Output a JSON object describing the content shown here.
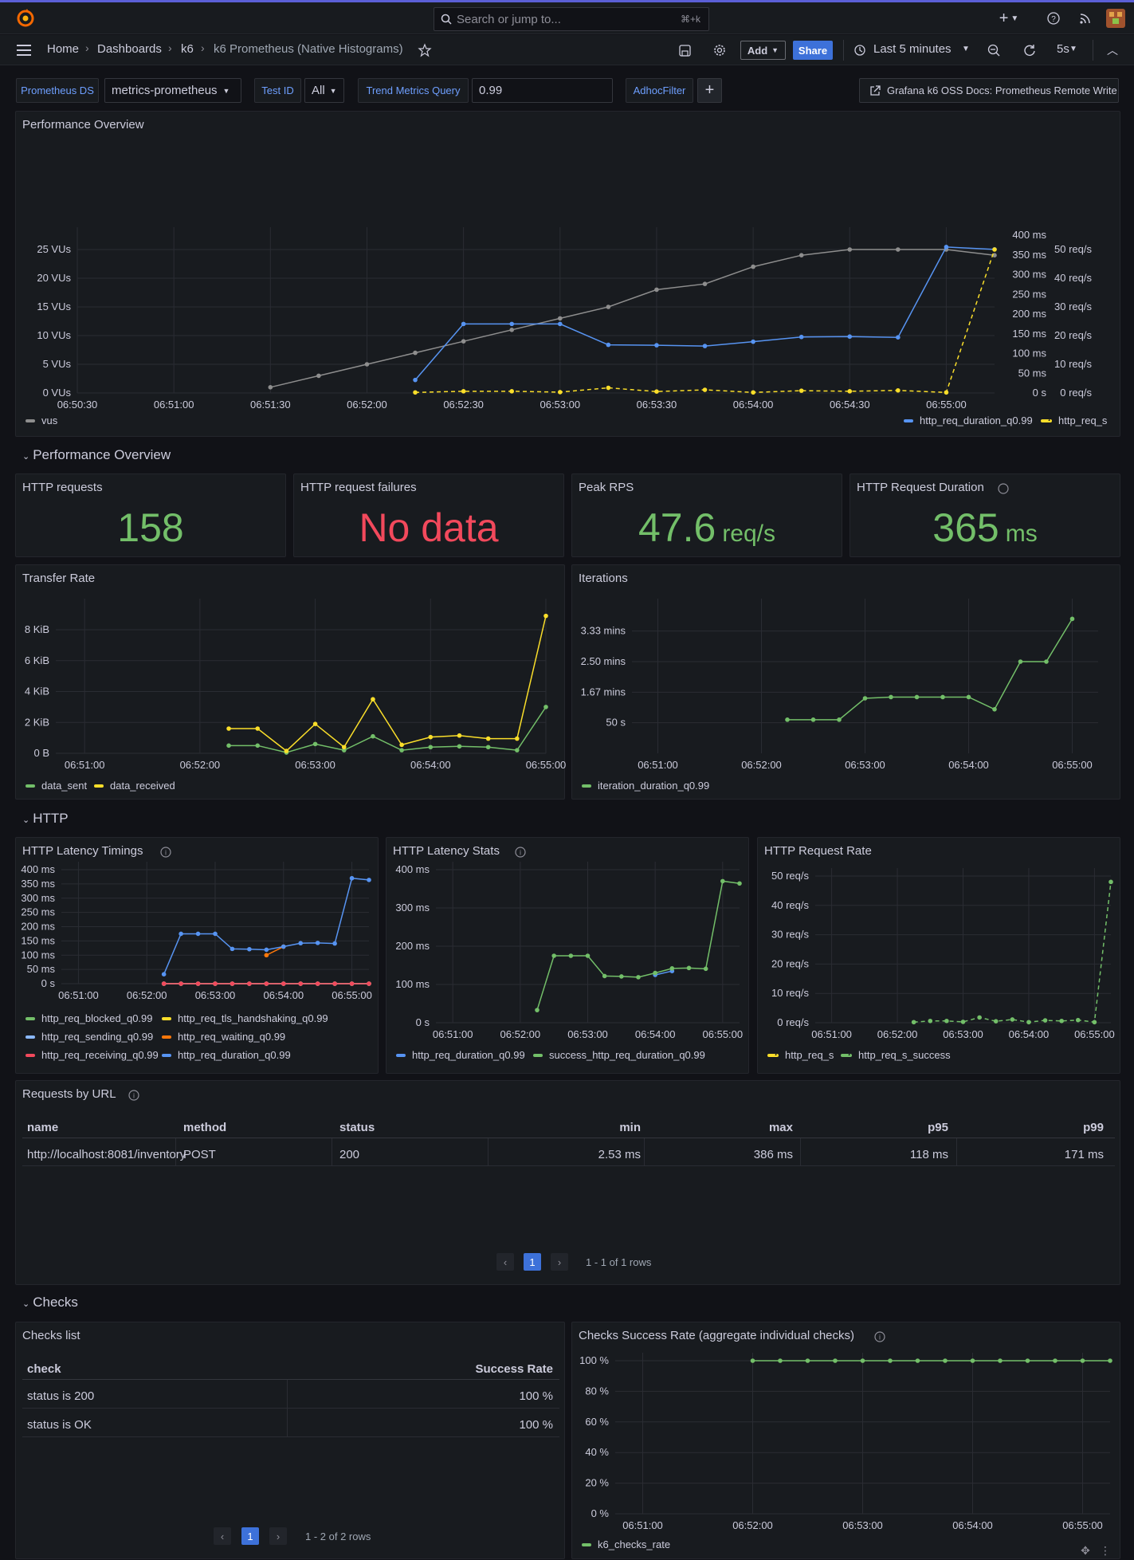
{
  "topbar": {
    "search_placeholder": "Search or jump to...",
    "search_shortcut": "⌘+k",
    "add": "+"
  },
  "nav": {
    "home": "Home",
    "dashboards": "Dashboards",
    "folder": "k6",
    "current": "k6 Prometheus (Native Histograms)",
    "add_label": "Add",
    "share_label": "Share",
    "time_range": "Last 5 minutes",
    "refresh": "5s"
  },
  "vars": {
    "ds_label": "Prometheus DS",
    "ds_value": "metrics-prometheus",
    "testid_label": "Test ID",
    "testid_value": "All",
    "trend_label": "Trend Metrics Query",
    "trend_value": "0.99",
    "adhoc_label": "AdhocFilter",
    "docs_link": "Grafana k6 OSS Docs: Prometheus Remote Write"
  },
  "colors": {
    "green": "#73bf69",
    "blue": "#5794f2",
    "yellow": "#fade2a",
    "red": "#f2495c",
    "orange": "#ff780a",
    "gray": "#8e8e8e"
  },
  "panels": {
    "perf": {
      "title": "Performance Overview"
    },
    "row_perf": "Performance Overview",
    "stats": [
      {
        "title": "HTTP requests",
        "value": "158",
        "unit": "",
        "color": "#73bf69"
      },
      {
        "title": "HTTP request failures",
        "value": "No data",
        "unit": "",
        "color": "#f2495c"
      },
      {
        "title": "Peak RPS",
        "value": "47.6",
        "unit": "req/s",
        "color": "#73bf69"
      },
      {
        "title": "HTTP Request Duration",
        "value": "365",
        "unit": "ms",
        "color": "#73bf69"
      }
    ],
    "transfer": {
      "title": "Transfer Rate"
    },
    "iterations": {
      "title": "Iterations"
    },
    "row_http": "HTTP",
    "latency_timings": {
      "title": "HTTP Latency Timings"
    },
    "latency_stats": {
      "title": "HTTP Latency Stats"
    },
    "request_rate": {
      "title": "HTTP Request Rate"
    },
    "requests_by_url": {
      "title": "Requests by URL",
      "headers": [
        "name",
        "method",
        "status",
        "min",
        "max",
        "p95",
        "p99"
      ],
      "rows": [
        [
          "http://localhost:8081/inventory",
          "POST",
          "200",
          "2.53 ms",
          "386 ms",
          "118 ms",
          "171 ms"
        ]
      ],
      "page": "1",
      "summary": "1 - 1 of 1 rows"
    },
    "row_checks": "Checks",
    "checks_list": {
      "title": "Checks list",
      "headers": [
        "check",
        "Success Rate"
      ],
      "rows": [
        [
          "status is 200",
          "100 %"
        ],
        [
          "status is OK",
          "100 %"
        ]
      ],
      "page": "1",
      "summary": "1 - 2 of 2 rows"
    },
    "checks_rate": {
      "title": "Checks Success Rate (aggregate individual checks)"
    }
  },
  "chart_data": [
    {
      "id": "perf",
      "type": "line",
      "title": "Performance Overview",
      "x": [
        "06:50:30",
        "06:51:00",
        "06:51:30",
        "06:52:00",
        "06:52:30",
        "06:53:00",
        "06:53:30",
        "06:54:00",
        "06:54:30",
        "06:55:00"
      ],
      "yleft": {
        "ticks": [
          "0 VUs",
          "5 VUs",
          "10 VUs",
          "15 VUs",
          "20 VUs",
          "25 VUs"
        ],
        "min": 0,
        "max": 27.5
      },
      "yms": {
        "ticks": [
          "0 s",
          "50 ms",
          "100 ms",
          "150 ms",
          "200 ms",
          "250 ms",
          "300 ms",
          "350 ms",
          "400 ms"
        ],
        "min": 0,
        "max": 400
      },
      "yrps": {
        "ticks": [
          "0 req/s",
          "10 req/s",
          "20 req/s",
          "30 req/s",
          "40 req/s",
          "50 req/s"
        ],
        "min": 0,
        "max": 55
      },
      "series": [
        {
          "name": "vus",
          "axis": "left",
          "color": "#8e8e8e",
          "dash": false,
          "t": [
            60,
            75,
            90,
            105,
            120,
            135,
            150,
            165,
            180,
            195,
            210,
            225,
            240,
            255,
            270,
            285
          ],
          "v": [
            1,
            3,
            5,
            7,
            9,
            11,
            13,
            15,
            18,
            19,
            22,
            24,
            25,
            25,
            25,
            24
          ]
        },
        {
          "name": "http_req_duration_q0.99",
          "axis": "ms",
          "color": "#5794f2",
          "dash": false,
          "t": [
            105,
            120,
            135,
            150,
            165,
            180,
            195,
            210,
            225,
            240,
            255,
            270,
            285
          ],
          "v": [
            33,
            175,
            175,
            175,
            122,
            121,
            119,
            130,
            142,
            143,
            141,
            370,
            364
          ]
        },
        {
          "name": "http_req_s",
          "axis": "rps",
          "color": "#fade2a",
          "dash": true,
          "t": [
            105,
            120,
            135,
            150,
            165,
            180,
            195,
            210,
            225,
            240,
            255,
            270,
            285
          ],
          "v": [
            0.2,
            0.6,
            0.6,
            0.3,
            1.8,
            0.5,
            1.1,
            0.2,
            0.8,
            0.6,
            0.9,
            0.2,
            50
          ]
        }
      ],
      "legend_left": [
        "vus"
      ],
      "legend_right": [
        "http_req_duration_q0.99",
        "http_req_s"
      ]
    },
    {
      "id": "transfer",
      "type": "line",
      "title": "Transfer Rate",
      "x": [
        "06:51:00",
        "06:52:00",
        "06:53:00",
        "06:54:00",
        "06:55:00"
      ],
      "y": {
        "ticks": [
          "0 B",
          "2 KiB",
          "4 KiB",
          "6 KiB",
          "8 KiB"
        ],
        "min": 0,
        "max": 9.5
      },
      "series": [
        {
          "name": "data_sent",
          "color": "#73bf69",
          "t": [
            105,
            120,
            135,
            150,
            165,
            180,
            195,
            210,
            225,
            240,
            255,
            270
          ],
          "v": [
            0.5,
            0.5,
            0.05,
            0.6,
            0.2,
            1.1,
            0.2,
            0.4,
            0.45,
            0.4,
            0.2,
            3
          ]
        },
        {
          "name": "data_received",
          "color": "#fade2a",
          "t": [
            105,
            120,
            135,
            150,
            165,
            180,
            195,
            210,
            225,
            240,
            255,
            270
          ],
          "v": [
            1.6,
            1.6,
            0.15,
            1.9,
            0.4,
            3.5,
            0.55,
            1.05,
            1.15,
            0.95,
            0.95,
            8.9
          ]
        }
      ]
    },
    {
      "id": "iterations",
      "type": "line",
      "title": "Iterations",
      "x": [
        "06:51:00",
        "06:52:00",
        "06:53:00",
        "06:54:00",
        "06:55:00"
      ],
      "y": {
        "ticks": [
          "50 s",
          "1.67 mins",
          "2.50 mins",
          "3.33 mins"
        ],
        "min": 0,
        "max": 240
      },
      "series": [
        {
          "name": "iteration_duration_q0.99",
          "color": "#73bf69",
          "t": [
            105,
            120,
            135,
            150,
            165,
            180,
            195,
            210,
            225,
            240,
            255,
            270
          ],
          "v": [
            55,
            55,
            55,
            90,
            92,
            92,
            92,
            92,
            72,
            150,
            150,
            220
          ]
        }
      ]
    },
    {
      "id": "latency_timings",
      "type": "line",
      "title": "HTTP Latency Timings",
      "x": [
        "06:51:00",
        "06:52:00",
        "06:53:00",
        "06:54:00",
        "06:55:00"
      ],
      "y": {
        "ticks": [
          "0 s",
          "50 ms",
          "100 ms",
          "150 ms",
          "200 ms",
          "250 ms",
          "300 ms",
          "350 ms",
          "400 ms"
        ],
        "min": 0,
        "max": 400
      },
      "series": [
        {
          "name": "http_req_blocked_q0.99",
          "color": "#73bf69",
          "t": [
            105,
            120,
            135,
            150,
            165,
            180,
            195,
            210,
            225,
            240,
            255,
            270,
            285
          ],
          "v": [
            0,
            0,
            0,
            0,
            0,
            0,
            0,
            0,
            0,
            0,
            0,
            0,
            0
          ]
        },
        {
          "name": "http_req_tls_handshaking_q0.99",
          "color": "#fade2a",
          "t": [
            105,
            120,
            135,
            150,
            165,
            180,
            195,
            210,
            225,
            240,
            255,
            270,
            285
          ],
          "v": [
            0,
            0,
            0,
            0,
            0,
            0,
            0,
            0,
            0,
            0,
            0,
            0,
            0
          ]
        },
        {
          "name": "http_req_sending_q0.99",
          "color": "#8ab8ff",
          "t": [
            105,
            120,
            135,
            150,
            165,
            180,
            195,
            210,
            225,
            240,
            255,
            270,
            285
          ],
          "v": [
            0,
            0,
            0,
            0,
            0,
            0,
            0,
            0,
            0,
            0,
            0,
            0,
            0
          ]
        },
        {
          "name": "http_req_waiting_q0.99",
          "color": "#ff780a",
          "t": [
            195,
            210
          ],
          "v": [
            100,
            130
          ]
        },
        {
          "name": "http_req_receiving_q0.99",
          "color": "#f2495c",
          "t": [
            105,
            120,
            135,
            150,
            165,
            180,
            195,
            210,
            225,
            240,
            255,
            270,
            285
          ],
          "v": [
            0,
            0,
            0,
            0,
            0,
            0,
            0,
            0,
            0,
            0,
            0,
            0,
            0
          ]
        },
        {
          "name": "http_req_duration_q0.99",
          "color": "#5794f2",
          "t": [
            105,
            120,
            135,
            150,
            165,
            180,
            195,
            210,
            225,
            240,
            255,
            270,
            285
          ],
          "v": [
            33,
            175,
            175,
            175,
            122,
            121,
            119,
            130,
            142,
            143,
            141,
            370,
            364
          ]
        }
      ]
    },
    {
      "id": "latency_stats",
      "type": "line",
      "title": "HTTP Latency Stats",
      "x": [
        "06:51:00",
        "06:52:00",
        "06:53:00",
        "06:54:00",
        "06:55:00"
      ],
      "y": {
        "ticks": [
          "0 s",
          "100 ms",
          "200 ms",
          "300 ms",
          "400 ms"
        ],
        "min": 0,
        "max": 400
      },
      "series": [
        {
          "name": "http_req_duration_q0.99",
          "color": "#5794f2",
          "t": [
            210,
            225
          ],
          "v": [
            125,
            135
          ]
        },
        {
          "name": "success_http_req_duration_q0.99",
          "color": "#73bf69",
          "t": [
            105,
            120,
            135,
            150,
            165,
            180,
            195,
            210,
            225,
            240,
            255,
            270,
            285
          ],
          "v": [
            33,
            175,
            175,
            175,
            122,
            121,
            119,
            130,
            142,
            143,
            141,
            370,
            364
          ]
        }
      ]
    },
    {
      "id": "request_rate",
      "type": "line",
      "title": "HTTP Request Rate",
      "x": [
        "06:51:00",
        "06:52:00",
        "06:53:00",
        "06:54:00",
        "06:55:00"
      ],
      "y": {
        "ticks": [
          "0 req/s",
          "10 req/s",
          "20 req/s",
          "30 req/s",
          "40 req/s",
          "50 req/s"
        ],
        "min": 0,
        "max": 50
      },
      "series": [
        {
          "name": "http_req_s",
          "color": "#fade2a",
          "dash": true,
          "t": [],
          "v": []
        },
        {
          "name": "http_req_s_success",
          "color": "#73bf69",
          "dash": true,
          "t": [
            105,
            120,
            135,
            150,
            165,
            180,
            195,
            210,
            225,
            240,
            255,
            270,
            285
          ],
          "v": [
            0.2,
            0.6,
            0.6,
            0.3,
            1.8,
            0.5,
            1.1,
            0.2,
            0.8,
            0.6,
            0.9,
            0.2,
            48
          ]
        }
      ]
    },
    {
      "id": "checks_rate",
      "type": "line",
      "title": "Checks Success Rate (aggregate individual checks)",
      "x": [
        "06:51:00",
        "06:52:00",
        "06:53:00",
        "06:54:00",
        "06:55:00"
      ],
      "y": {
        "ticks": [
          "0 %",
          "20 %",
          "40 %",
          "60 %",
          "80 %",
          "100 %"
        ],
        "min": 0,
        "max": 100
      },
      "series": [
        {
          "name": "k6_checks_rate",
          "color": "#73bf69",
          "t": [
            90,
            105,
            120,
            135,
            150,
            165,
            180,
            195,
            210,
            225,
            240,
            255,
            270,
            285
          ],
          "v": [
            100,
            100,
            100,
            100,
            100,
            100,
            100,
            100,
            100,
            100,
            100,
            100,
            100,
            100
          ]
        }
      ]
    }
  ]
}
